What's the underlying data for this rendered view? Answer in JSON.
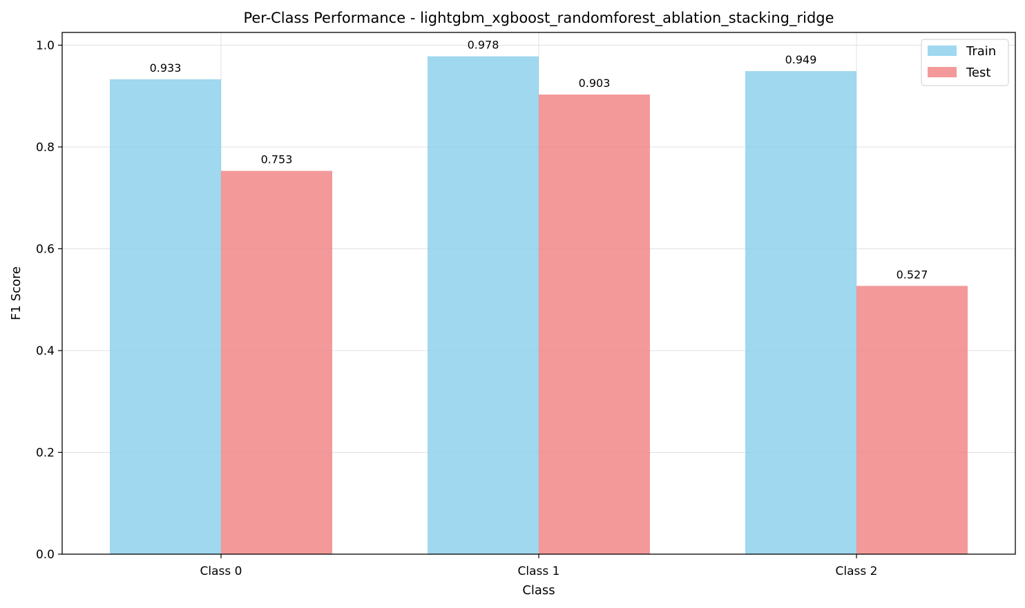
{
  "chart_data": {
    "type": "bar",
    "title": "Per-Class Performance - lightgbm_xgboost_randomforest_ablation_stacking_ridge",
    "xlabel": "Class",
    "ylabel": "F1 Score",
    "categories": [
      "Class 0",
      "Class 1",
      "Class 2"
    ],
    "series": [
      {
        "name": "Train",
        "color": "#87CEEB",
        "values": [
          0.933,
          0.978,
          0.949
        ],
        "labels": [
          "0.933",
          "0.978",
          "0.949"
        ]
      },
      {
        "name": "Test",
        "color": "#F08080",
        "values": [
          0.753,
          0.903,
          0.527
        ],
        "labels": [
          "0.753",
          "0.903",
          "0.527"
        ]
      }
    ],
    "ylim": [
      0,
      1.025
    ],
    "yticks": [
      0.0,
      0.2,
      0.4,
      0.6,
      0.8,
      1.0
    ],
    "ytick_labels": [
      "0.0",
      "0.2",
      "0.4",
      "0.6",
      "0.8",
      "1.0"
    ],
    "grid": true,
    "legend_position": "top-right"
  }
}
